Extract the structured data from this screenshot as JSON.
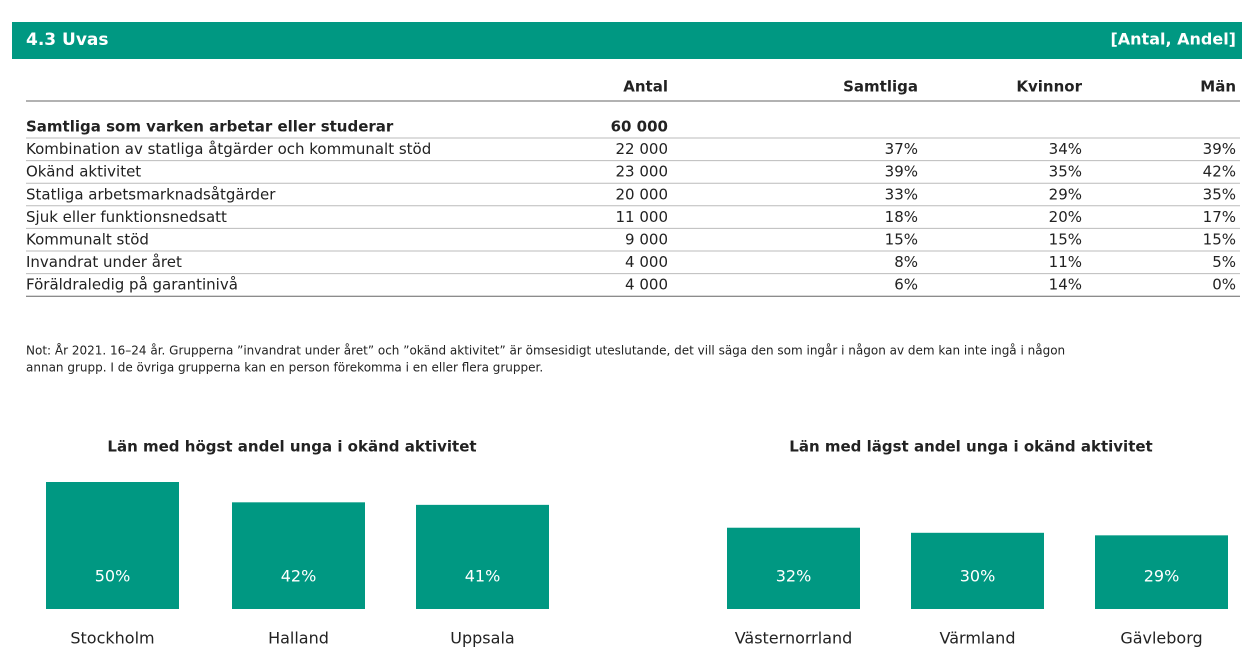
{
  "header": {
    "title": "4.3  Uvas",
    "units": "[Antal, Andel]"
  },
  "table": {
    "header": [
      "Antal",
      "Samtliga",
      "Kvinnor",
      "Män"
    ],
    "rows": [
      [
        "Samtliga som varken arbetar eller studerar",
        "60 000"
      ],
      [
        "Kombination av statliga åtgärder och kommunalt stöd",
        "22 000",
        "37%",
        "34%",
        "39%"
      ],
      [
        "Okänd aktivitet",
        "23 000",
        "39%",
        "35%",
        "42%"
      ],
      [
        "Statliga arbetsmarknadsåtgärder",
        "20 000",
        "33%",
        "29%",
        "35%"
      ],
      [
        "Sjuk eller funktionsnedsatt",
        "11 000",
        "18%",
        "20%",
        "17%"
      ],
      [
        "Kommunalt stöd",
        "9 000",
        "15%",
        "15%",
        "15%"
      ],
      [
        "Invandrat under året",
        "4 000",
        "8%",
        "11%",
        "5%"
      ],
      [
        "Föräldraledig på garantinivå",
        "4 000",
        "6%",
        "14%",
        "0%"
      ]
    ]
  },
  "note": [
    "Not: År 2021. 16–24 år. Grupperna ”invandrat under året” och ”okänd aktivitet” är ömsesidigt uteslutande, det vill säga den som ingår i någon av dem kan inte ingå i någon",
    "annan grupp. I de övriga grupperna kan en person förekomma i en eller flera grupper."
  ],
  "chart_data": [
    {
      "type": "bar",
      "title": "Län med högst andel unga i okänd aktivitet",
      "categories": [
        "Stockholm",
        "Halland",
        "Uppsala"
      ],
      "values": [
        50,
        42,
        41
      ],
      "value_labels": [
        "50%",
        "42%",
        "41%"
      ],
      "color": "#009882"
    },
    {
      "type": "bar",
      "title": "Län med lägst andel unga i okänd aktivitet",
      "categories": [
        "Västernorrland",
        "Värmland",
        "Gävleborg"
      ],
      "values": [
        32,
        30,
        29
      ],
      "value_labels": [
        "32%",
        "30%",
        "29%"
      ],
      "color": "#009882"
    }
  ]
}
